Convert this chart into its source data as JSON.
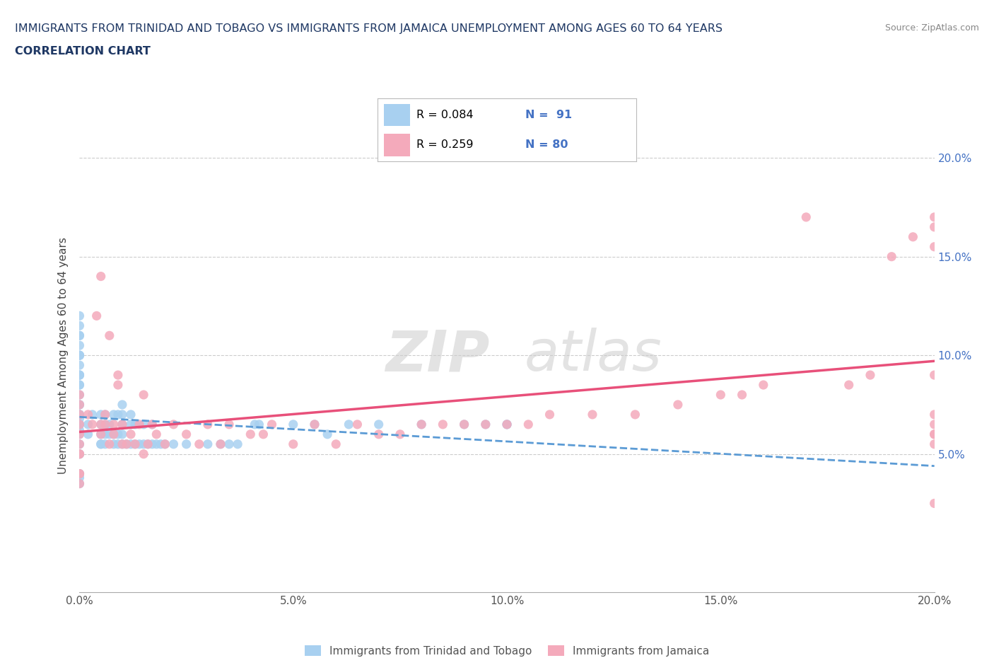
{
  "title_line1": "IMMIGRANTS FROM TRINIDAD AND TOBAGO VS IMMIGRANTS FROM JAMAICA UNEMPLOYMENT AMONG AGES 60 TO 64 YEARS",
  "title_line2": "CORRELATION CHART",
  "source_text": "Source: ZipAtlas.com",
  "ylabel": "Unemployment Among Ages 60 to 64 years",
  "xlim": [
    0.0,
    0.2
  ],
  "ylim": [
    -0.02,
    0.22
  ],
  "xtick_values": [
    0.0,
    0.05,
    0.1,
    0.15,
    0.2
  ],
  "xtick_labels": [
    "0.0%",
    "5.0%",
    "10.0%",
    "15.0%",
    "20.0%"
  ],
  "ytick_values": [
    0.05,
    0.1,
    0.15,
    0.2
  ],
  "ytick_labels": [
    "5.0%",
    "10.0%",
    "15.0%",
    "20.0%"
  ],
  "legend_r1": "R = 0.084",
  "legend_n1": "N =  91",
  "legend_r2": "R = 0.259",
  "legend_n2": "N = 80",
  "color_tt": "#A8D0F0",
  "color_jm": "#F4AABB",
  "trend_color_tt": "#5B9BD5",
  "trend_color_jm": "#E8507A",
  "watermark_zip": "ZIP",
  "watermark_atlas": "atlas",
  "tt_x": [
    0.0,
    0.0,
    0.0,
    0.0,
    0.0,
    0.0,
    0.0,
    0.0,
    0.0,
    0.0,
    0.0,
    0.0,
    0.0,
    0.0,
    0.0,
    0.0,
    0.0,
    0.0,
    0.0,
    0.0,
    0.0,
    0.0,
    0.0,
    0.0,
    0.0,
    0.0,
    0.0,
    0.0,
    0.0,
    0.0,
    0.0,
    0.0,
    0.0,
    0.002,
    0.002,
    0.003,
    0.005,
    0.005,
    0.005,
    0.005,
    0.005,
    0.006,
    0.006,
    0.006,
    0.006,
    0.007,
    0.007,
    0.008,
    0.008,
    0.008,
    0.009,
    0.009,
    0.009,
    0.01,
    0.01,
    0.01,
    0.01,
    0.01,
    0.011,
    0.012,
    0.012,
    0.012,
    0.013,
    0.013,
    0.014,
    0.015,
    0.015,
    0.016,
    0.017,
    0.017,
    0.018,
    0.019,
    0.02,
    0.022,
    0.025,
    0.03,
    0.033,
    0.035,
    0.037,
    0.041,
    0.042,
    0.05,
    0.055,
    0.058,
    0.063,
    0.07,
    0.08,
    0.09,
    0.095,
    0.1,
    0.1
  ],
  "tt_y": [
    0.05,
    0.05,
    0.055,
    0.06,
    0.062,
    0.065,
    0.065,
    0.065,
    0.068,
    0.07,
    0.07,
    0.07,
    0.075,
    0.075,
    0.08,
    0.085,
    0.085,
    0.09,
    0.09,
    0.09,
    0.095,
    0.1,
    0.1,
    0.1,
    0.105,
    0.11,
    0.11,
    0.115,
    0.12,
    0.04,
    0.04,
    0.038,
    0.035,
    0.06,
    0.065,
    0.07,
    0.055,
    0.055,
    0.06,
    0.065,
    0.07,
    0.055,
    0.06,
    0.065,
    0.07,
    0.06,
    0.065,
    0.055,
    0.06,
    0.07,
    0.055,
    0.06,
    0.07,
    0.055,
    0.06,
    0.065,
    0.07,
    0.075,
    0.055,
    0.055,
    0.065,
    0.07,
    0.055,
    0.065,
    0.055,
    0.055,
    0.065,
    0.055,
    0.055,
    0.065,
    0.055,
    0.055,
    0.055,
    0.055,
    0.055,
    0.055,
    0.055,
    0.055,
    0.055,
    0.065,
    0.065,
    0.065,
    0.065,
    0.06,
    0.065,
    0.065,
    0.065,
    0.065,
    0.065,
    0.065,
    0.065
  ],
  "jm_x": [
    0.0,
    0.0,
    0.0,
    0.0,
    0.0,
    0.0,
    0.0,
    0.0,
    0.0,
    0.0,
    0.0,
    0.002,
    0.003,
    0.004,
    0.005,
    0.005,
    0.005,
    0.006,
    0.006,
    0.007,
    0.007,
    0.008,
    0.008,
    0.009,
    0.009,
    0.01,
    0.01,
    0.011,
    0.012,
    0.013,
    0.014,
    0.015,
    0.015,
    0.016,
    0.017,
    0.018,
    0.02,
    0.022,
    0.025,
    0.028,
    0.03,
    0.033,
    0.035,
    0.04,
    0.043,
    0.045,
    0.05,
    0.055,
    0.06,
    0.065,
    0.07,
    0.075,
    0.08,
    0.085,
    0.09,
    0.095,
    0.1,
    0.105,
    0.11,
    0.12,
    0.13,
    0.14,
    0.15,
    0.155,
    0.16,
    0.17,
    0.18,
    0.185,
    0.19,
    0.195,
    0.2,
    0.2,
    0.2,
    0.2,
    0.2,
    0.2,
    0.2,
    0.2,
    0.2,
    0.2
  ],
  "jm_y": [
    0.05,
    0.055,
    0.06,
    0.065,
    0.07,
    0.075,
    0.08,
    0.05,
    0.04,
    0.04,
    0.035,
    0.07,
    0.065,
    0.12,
    0.06,
    0.065,
    0.14,
    0.065,
    0.07,
    0.055,
    0.11,
    0.06,
    0.065,
    0.085,
    0.09,
    0.055,
    0.065,
    0.055,
    0.06,
    0.055,
    0.065,
    0.05,
    0.08,
    0.055,
    0.065,
    0.06,
    0.055,
    0.065,
    0.06,
    0.055,
    0.065,
    0.055,
    0.065,
    0.06,
    0.06,
    0.065,
    0.055,
    0.065,
    0.055,
    0.065,
    0.06,
    0.06,
    0.065,
    0.065,
    0.065,
    0.065,
    0.065,
    0.065,
    0.07,
    0.07,
    0.07,
    0.075,
    0.08,
    0.08,
    0.085,
    0.17,
    0.085,
    0.09,
    0.15,
    0.16,
    0.06,
    0.09,
    0.155,
    0.17,
    0.165,
    0.06,
    0.065,
    0.055,
    0.07,
    0.025
  ]
}
